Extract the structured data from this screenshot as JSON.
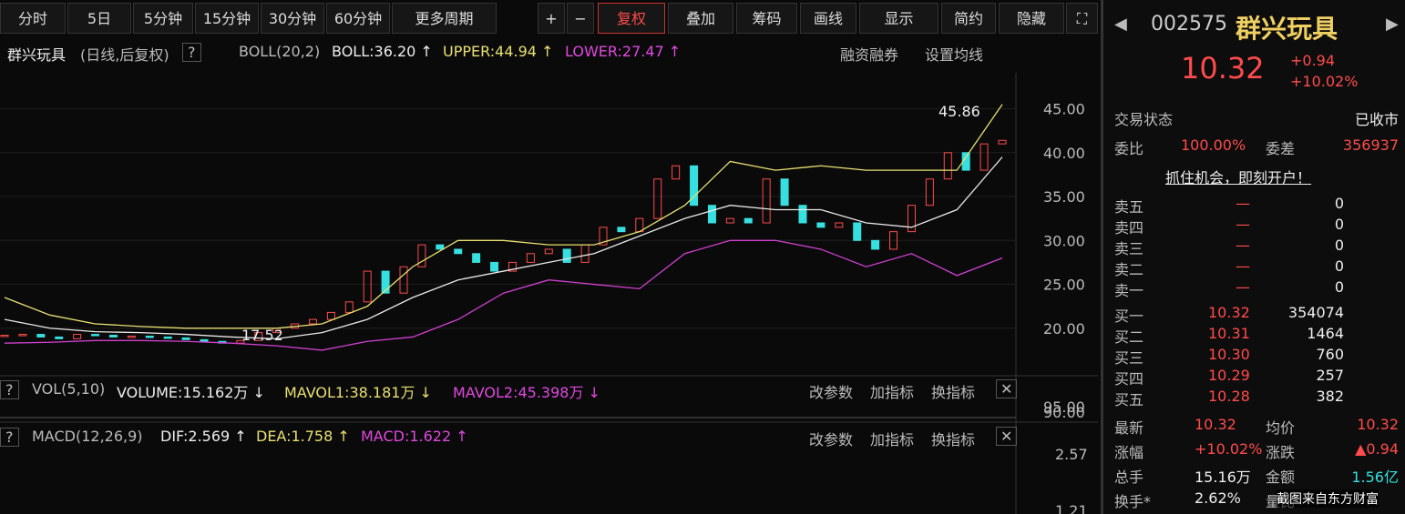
{
  "toolbar": {
    "buttons": [
      "分时",
      "5日",
      "5分钟",
      "15分钟",
      "30分钟",
      "60分钟",
      "更多周期",
      "+",
      "−",
      "复权",
      "叠加",
      "筹码",
      "画线",
      "显示",
      "简约",
      "隐藏"
    ]
  },
  "stock_header": {
    "name": "群兴玩具",
    "mode": "(日线,后复权)",
    "help": "?",
    "indicator": "BOLL(20,2)",
    "boll": "BOLL:36.20 ↑",
    "upper": "UPPER:44.94 ↑",
    "lower": "LOWER:27.47 ↑",
    "links": [
      "融资融券",
      "设置均线"
    ]
  },
  "price_chart": {
    "ylim": [
      14.9,
      49.1
    ],
    "yticks": [
      {
        "value": 20,
        "label": "20.00"
      },
      {
        "value": 25,
        "label": "25.00"
      },
      {
        "value": 30,
        "label": "30.00"
      },
      {
        "value": 35,
        "label": "35.00"
      },
      {
        "value": 40,
        "label": "40.00"
      },
      {
        "value": 45,
        "label": "45.00"
      }
    ],
    "closes": [
      19.2,
      19.3,
      19.0,
      18.8,
      19.3,
      19.2,
      19.0,
      19.1,
      19.0,
      18.9,
      18.7,
      18.5,
      18.3,
      18.6,
      19.5,
      20.0,
      20.5,
      21.0,
      21.8,
      23.0,
      26.5,
      24.0,
      27.0,
      29.5,
      29.0,
      28.5,
      27.5,
      26.5,
      27.5,
      28.5,
      29.0,
      27.5,
      29.5,
      31.5,
      31.0,
      32.5,
      37.0,
      38.5,
      34.0,
      32.0,
      32.5,
      32.0,
      37.0,
      34.0,
      32.0,
      31.5,
      32.0,
      30.0,
      29.0,
      31.0,
      34.0,
      37.0,
      40.0,
      38.0,
      41.0,
      41.4
    ],
    "boll_upper": [
      23.5,
      21.5,
      20.5,
      20.2,
      20.0,
      20.0,
      20.0,
      20.5,
      22.5,
      27,
      30,
      30,
      29.5,
      29.5,
      31,
      34,
      39,
      38,
      38.5,
      38,
      38,
      38,
      45.5
    ],
    "boll_mid": [
      21.0,
      20.0,
      19.6,
      19.5,
      19.3,
      19.0,
      18.8,
      19.5,
      21,
      23.5,
      25.5,
      26.5,
      27.5,
      28.5,
      30.5,
      32.5,
      34,
      33.5,
      33.5,
      32,
      31.5,
      33.5,
      39.5
    ],
    "boll_lower": [
      18.3,
      18.4,
      18.6,
      18.6,
      18.5,
      18.3,
      18,
      17.5,
      18.5,
      19,
      21,
      24,
      25.5,
      25,
      24.5,
      28.5,
      30,
      30,
      29,
      27,
      28.5,
      26,
      28
    ],
    "high_label": "45.86",
    "low_label": "17.52"
  },
  "volume_panel": {
    "help": "?",
    "name": "VOL(5,10)",
    "volume": "VOLUME:15.162万 ↓",
    "mavol1": "MAVOL1:38.181万 ↓",
    "mavol2": "MAVOL2:45.398万 ↓",
    "actions": [
      "改参数",
      "加指标",
      "换指标"
    ],
    "axis": [
      "95.00",
      "90.00"
    ]
  },
  "macd_panel": {
    "help": "?",
    "name": "MACD(12,26,9)",
    "dif": "DIF:2.569 ↑",
    "dea": "DEA:1.758 ↑",
    "macd": "MACD:1.622 ↑",
    "actions": [
      "改参数",
      "加指标",
      "换指标"
    ],
    "axis": [
      "2.57",
      "1.21"
    ]
  },
  "quote": {
    "code": "002575",
    "name": "群兴玩具",
    "price": "10.32",
    "change": "+0.94",
    "change_pct": "+10.02%",
    "status_label": "交易状态",
    "status": "已收市",
    "ratio_label": "委比",
    "ratio": "100.00%",
    "diff_label": "委差",
    "diff": "356937",
    "promo": "抓住机会，即刻开户！",
    "sells": [
      [
        "卖五",
        "—",
        "0"
      ],
      [
        "卖四",
        "—",
        "0"
      ],
      [
        "卖三",
        "—",
        "0"
      ],
      [
        "卖二",
        "—",
        "0"
      ],
      [
        "卖一",
        "—",
        "0"
      ]
    ],
    "buys": [
      [
        "买一",
        "10.32",
        "354074"
      ],
      [
        "买二",
        "10.31",
        "1464"
      ],
      [
        "买三",
        "10.30",
        "760"
      ],
      [
        "买四",
        "10.29",
        "257"
      ],
      [
        "买五",
        "10.28",
        "382"
      ]
    ],
    "stats": [
      [
        "最新",
        "10.32",
        "均价",
        "10.32"
      ],
      [
        "涨幅",
        "+10.02%",
        "涨跌",
        "▲0.94"
      ],
      [
        "总手",
        "15.16万",
        "金额",
        "1.56亿"
      ],
      [
        "换手*",
        "2.62%",
        "量比",
        ""
      ]
    ],
    "watermark": "截图来自东方财富"
  }
}
